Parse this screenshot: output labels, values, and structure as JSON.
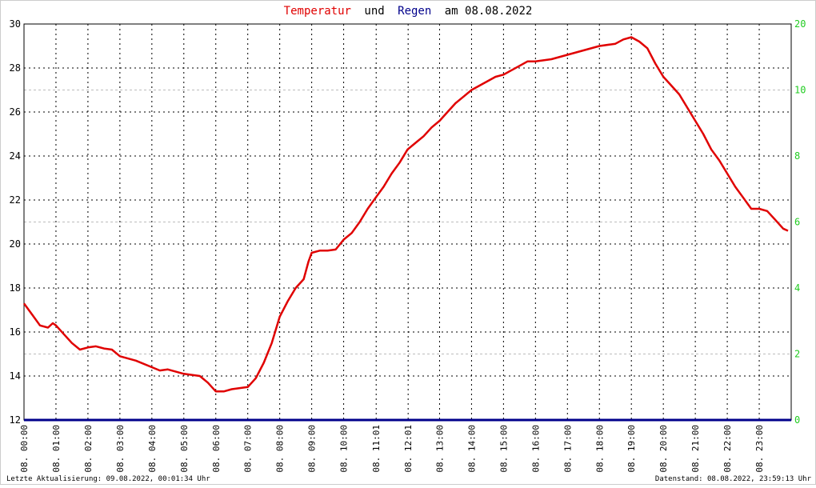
{
  "chart_data": {
    "type": "line",
    "title_parts": [
      "und",
      "am 08.08.2022"
    ],
    "footer_left": "Letzte Aktualisierung: 09.08.2022, 00:01:34 Uhr",
    "footer_right": "Datenstand: 08.08.2022, 23:59:13 Uhr",
    "xlim": [
      0,
      24
    ],
    "xticks": [
      {
        "value": 0,
        "label": "08. 00:00"
      },
      {
        "value": 1,
        "label": "08. 01:00"
      },
      {
        "value": 2,
        "label": "08. 02:00"
      },
      {
        "value": 3,
        "label": "08. 03:00"
      },
      {
        "value": 4,
        "label": "08. 04:00"
      },
      {
        "value": 5,
        "label": "08. 05:00"
      },
      {
        "value": 6,
        "label": "08. 06:00"
      },
      {
        "value": 7,
        "label": "08. 07:00"
      },
      {
        "value": 8,
        "label": "08. 08:00"
      },
      {
        "value": 9,
        "label": "08. 09:00"
      },
      {
        "value": 10,
        "label": "08. 10:00"
      },
      {
        "value": 11.0167,
        "label": "08. 11:01"
      },
      {
        "value": 12.0167,
        "label": "08. 12:01"
      },
      {
        "value": 13,
        "label": "08. 13:00"
      },
      {
        "value": 14,
        "label": "08. 14:00"
      },
      {
        "value": 15,
        "label": "08. 15:00"
      },
      {
        "value": 16,
        "label": "08. 16:00"
      },
      {
        "value": 17,
        "label": "08. 17:00"
      },
      {
        "value": 18,
        "label": "08. 18:00"
      },
      {
        "value": 19,
        "label": "08. 19:00"
      },
      {
        "value": 20,
        "label": "08. 20:00"
      },
      {
        "value": 21,
        "label": "08. 21:00"
      },
      {
        "value": 22,
        "label": "08. 22:00"
      },
      {
        "value": 23,
        "label": "08. 23:00"
      }
    ],
    "ylim": [
      12,
      30
    ],
    "yticks": [
      12,
      14,
      16,
      18,
      20,
      22,
      24,
      26,
      28,
      30
    ],
    "y2lim": [
      0,
      20
    ],
    "y2ticks": [
      0,
      2,
      4,
      6,
      8,
      10,
      20
    ],
    "grid": true,
    "series": [
      {
        "name": "Temperatur",
        "color": "#e00000",
        "x": [
          0,
          0.25,
          0.5,
          0.75,
          0.9,
          1,
          1.25,
          1.5,
          1.75,
          2,
          2.25,
          2.5,
          2.75,
          3,
          3.5,
          4,
          4.25,
          4.5,
          5,
          5.5,
          5.75,
          6,
          6.25,
          6.5,
          7,
          7.25,
          7.5,
          7.75,
          8,
          8.25,
          8.5,
          8.75,
          8.9,
          9,
          9.25,
          9.5,
          9.75,
          10,
          10.25,
          10.5,
          10.75,
          11,
          11.25,
          11.5,
          11.75,
          12,
          12.25,
          12.5,
          12.75,
          13,
          13.25,
          13.5,
          13.75,
          14,
          14.25,
          14.5,
          14.75,
          15,
          15.25,
          15.5,
          15.75,
          16,
          16.5,
          17,
          17.5,
          18,
          18.5,
          18.75,
          19,
          19.25,
          19.5,
          19.75,
          20,
          20.25,
          20.5,
          20.75,
          21,
          21.25,
          21.5,
          21.75,
          22,
          22.25,
          22.5,
          22.75,
          23,
          23.25,
          23.5,
          23.75,
          23.9
        ],
        "values": [
          17.3,
          16.8,
          16.3,
          16.2,
          16.4,
          16.3,
          15.9,
          15.5,
          15.2,
          15.3,
          15.35,
          15.25,
          15.2,
          14.9,
          14.7,
          14.4,
          14.25,
          14.3,
          14.1,
          14.0,
          13.7,
          13.3,
          13.3,
          13.4,
          13.5,
          13.9,
          14.6,
          15.5,
          16.7,
          17.4,
          18.0,
          18.4,
          19.2,
          19.6,
          19.7,
          19.7,
          19.75,
          20.2,
          20.5,
          21.0,
          21.6,
          22.1,
          22.6,
          23.2,
          23.7,
          24.3,
          24.6,
          24.9,
          25.3,
          25.6,
          26.0,
          26.4,
          26.7,
          27.0,
          27.2,
          27.4,
          27.6,
          27.7,
          27.9,
          28.1,
          28.3,
          28.3,
          28.4,
          28.6,
          28.8,
          29.0,
          29.1,
          29.3,
          29.4,
          29.2,
          28.9,
          28.2,
          27.6,
          27.2,
          26.8,
          26.2,
          25.6,
          25.0,
          24.3,
          23.8,
          23.2,
          22.6,
          22.1,
          21.6,
          21.6,
          21.5,
          21.1,
          20.7,
          20.6
        ]
      },
      {
        "name": "Regen",
        "color": "#00008b",
        "axis": "y2",
        "x": [
          0,
          24
        ],
        "values": [
          0,
          0
        ]
      }
    ]
  }
}
